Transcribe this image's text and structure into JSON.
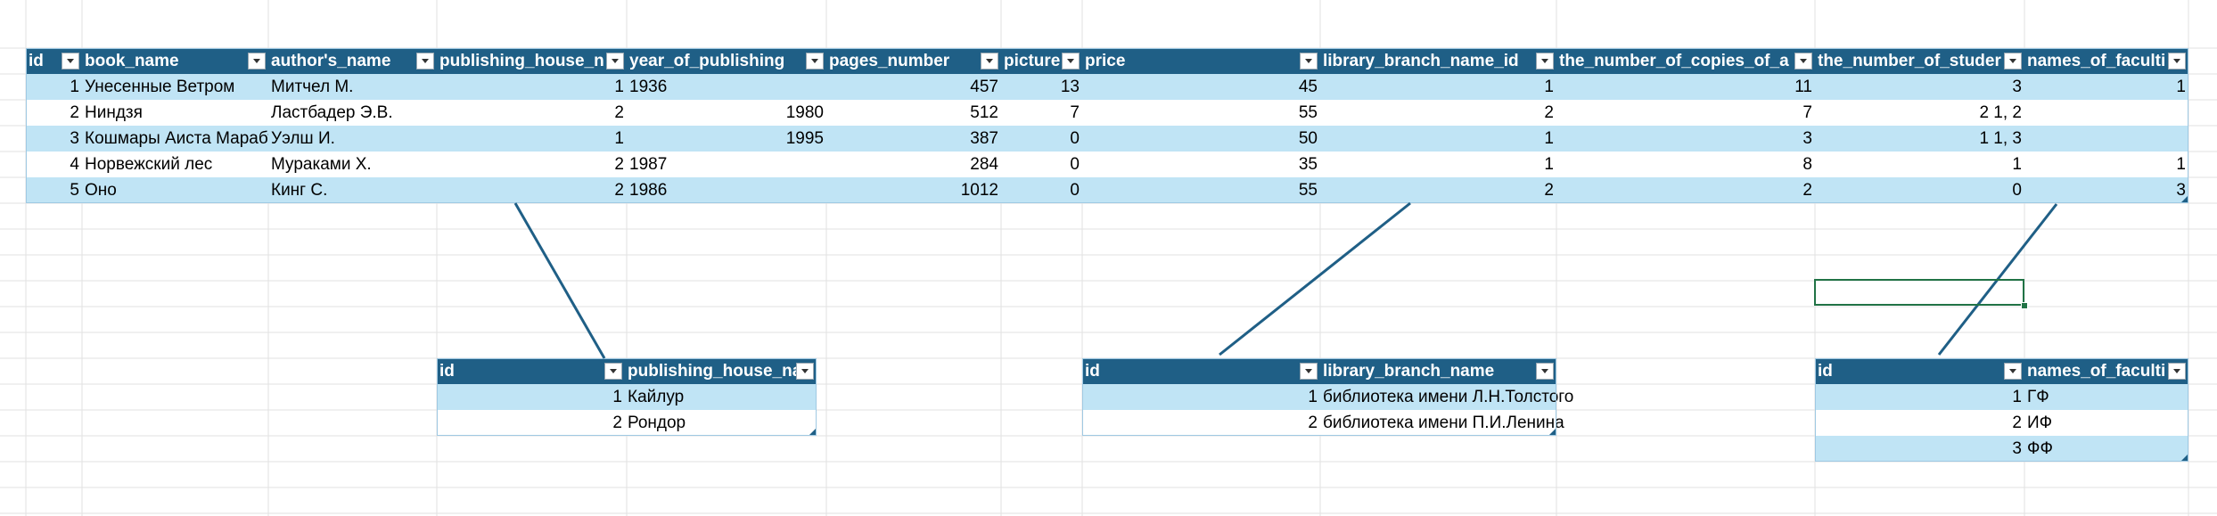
{
  "books": {
    "headers": [
      "id",
      "book_name",
      "author's_name",
      "publishing_house_n",
      "year_of_publishing",
      "pages_number",
      "picture",
      "price",
      "library_branch_name_id",
      "the_number_of_copies_of_a",
      "the_number_of_studer",
      "names_of_faculti"
    ],
    "rows": [
      [
        "1",
        "Унесенные Ветром",
        "Митчел М.",
        "1",
        "1936",
        "457",
        "13",
        "45",
        "1",
        "11",
        "3",
        "1"
      ],
      [
        "2",
        "Ниндзя",
        "Ластбадер Э.В.",
        "2",
        "1980",
        "512",
        "7",
        "55",
        "2",
        "7",
        "2 1, 2",
        ""
      ],
      [
        "3",
        "Кошмары Аиста Марабу",
        "Уэлш И.",
        "1",
        "1995",
        "387",
        "0",
        "50",
        "1",
        "3",
        "1 1, 3",
        ""
      ],
      [
        "4",
        "Норвежский лес",
        "Мураками Х.",
        "2",
        "1987",
        "284",
        "0",
        "35",
        "1",
        "8",
        "1",
        "1"
      ],
      [
        "5",
        "Оно",
        "Кинг С.",
        "2",
        "1986",
        "1012",
        "0",
        "55",
        "2",
        "2",
        "0",
        "3"
      ]
    ]
  },
  "publishers": {
    "headers": [
      "id",
      "publishing_house_na"
    ],
    "rows": [
      [
        "1",
        "Кайлур"
      ],
      [
        "2",
        "Рондор"
      ]
    ]
  },
  "branches": {
    "headers": [
      "id",
      "library_branch_name"
    ],
    "rows": [
      [
        "1",
        "библиотека имени Л.Н.Толстого"
      ],
      [
        "2",
        "библиотека имени П.И.Ленина"
      ]
    ]
  },
  "faculties": {
    "headers": [
      "id",
      "names_of_faculti"
    ],
    "rows": [
      [
        "1",
        "ГФ"
      ],
      [
        "2",
        "ИФ"
      ],
      [
        "3",
        "ФФ"
      ]
    ]
  },
  "colors": {
    "header_bg": "#1f5f86",
    "band_bg": "#c0e4f5",
    "selection": "#217346",
    "connector": "#1f5f86"
  }
}
